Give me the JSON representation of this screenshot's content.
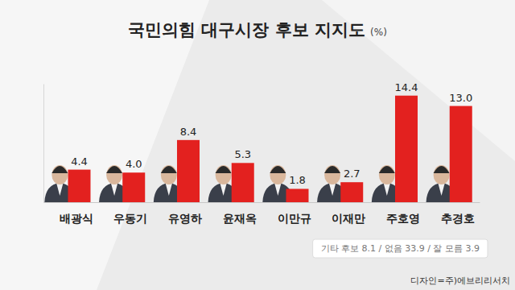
{
  "chart_data": {
    "type": "bar",
    "title": "국민의힘 대구시장 후보 지지도",
    "ylabel": "(%)",
    "categories": [
      "배광식",
      "우동기",
      "유영하",
      "윤재옥",
      "이만규",
      "이재만",
      "주호영",
      "추경호"
    ],
    "values": [
      4.4,
      4.0,
      8.4,
      5.3,
      1.8,
      2.7,
      14.4,
      13.0
    ],
    "value_labels": [
      "4.4",
      "4.0",
      "8.4",
      "5.3",
      "1.8",
      "2.7",
      "14.4",
      "13.0"
    ],
    "color": "#e3211f",
    "ylim": [
      0,
      16
    ],
    "data_labels": true,
    "tick_labels": "x",
    "grid": false,
    "annotations": [
      "기타 후보 8.1 / 없음 33.9 / 잘 모름 3.9",
      "디자인=주)에브리리서치"
    ]
  }
}
